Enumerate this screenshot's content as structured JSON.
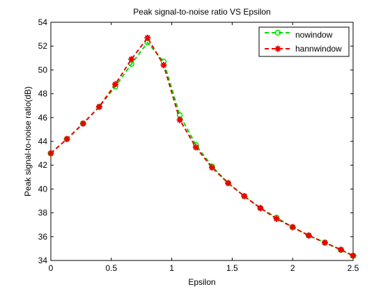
{
  "chart_data": {
    "type": "line",
    "title": "Peak signal-to-noise ratio VS Epsilon",
    "xlabel": "Epsilon",
    "ylabel": "Peak signal-to-noise ratio(dB)",
    "xlim": [
      0,
      2.5
    ],
    "ylim": [
      34,
      54
    ],
    "xticks": [
      0,
      0.5,
      1,
      1.5,
      2,
      2.5
    ],
    "xtick_labels": [
      "0",
      "0.5",
      "1",
      "1.5",
      "2",
      "2.5"
    ],
    "yticks": [
      34,
      36,
      38,
      40,
      42,
      44,
      46,
      48,
      50,
      52,
      54
    ],
    "ytick_labels": [
      "34",
      "36",
      "38",
      "40",
      "42",
      "44",
      "46",
      "48",
      "50",
      "52",
      "54"
    ],
    "grid": false,
    "legend_position": "top-right",
    "x": [
      0,
      0.1333,
      0.2667,
      0.4,
      0.5333,
      0.6667,
      0.8,
      0.9333,
      1.0667,
      1.2,
      1.3333,
      1.4667,
      1.6,
      1.7333,
      1.8667,
      2.0,
      2.1333,
      2.2667,
      2.4,
      2.5
    ],
    "series": [
      {
        "name": "nowindow",
        "color": "#00dd00",
        "marker": "circle",
        "line_style": "dashed",
        "values": [
          43.0,
          44.2,
          45.5,
          46.9,
          48.6,
          50.5,
          52.3,
          50.7,
          46.2,
          43.7,
          41.9,
          40.5,
          39.4,
          38.4,
          37.6,
          36.8,
          36.1,
          35.5,
          34.9,
          34.4
        ]
      },
      {
        "name": "hannwindow",
        "color": "#ee0000",
        "marker": "star",
        "line_style": "dashed",
        "values": [
          43.0,
          44.2,
          45.5,
          46.9,
          48.8,
          50.9,
          52.7,
          50.4,
          45.8,
          43.5,
          41.8,
          40.5,
          39.4,
          38.4,
          37.5,
          36.8,
          36.1,
          35.5,
          34.9,
          34.4
        ]
      }
    ]
  }
}
